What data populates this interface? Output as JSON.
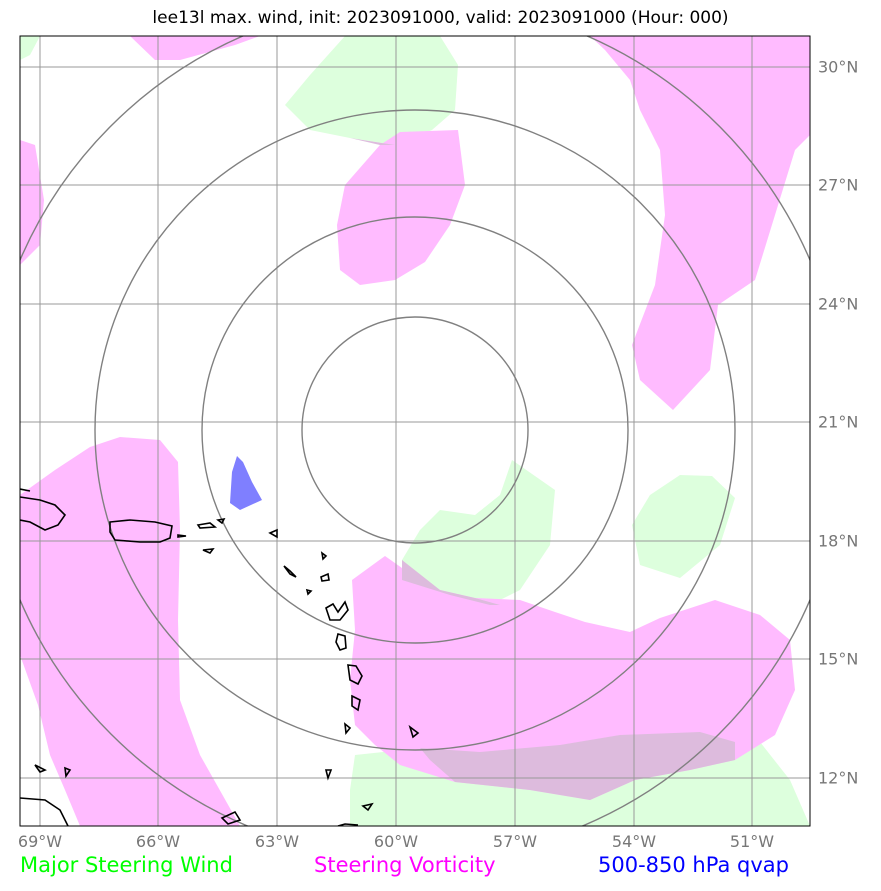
{
  "title": "lee13l max. wind, init: 2023091000, valid: 2023091000 (Hour: 000)",
  "lon_ticks": [
    "69°W",
    "66°W",
    "63°W",
    "60°W",
    "57°W",
    "54°W",
    "51°W"
  ],
  "lat_ticks": [
    "30°N",
    "27°N",
    "24°N",
    "21°N",
    "18°N",
    "15°N",
    "12°N"
  ],
  "legend": {
    "wind": {
      "label": "Major Steering Wind",
      "color": "#00ff00"
    },
    "vorticity": {
      "label": "Steering Vorticity",
      "color": "#ff00ff"
    },
    "qvap": {
      "label": "500-850 hPa qvap",
      "color": "#0000ff"
    }
  },
  "colors": {
    "wind_fill": "#ddffdd",
    "vorticity_fill": "#ffbbff",
    "qvap_fill": "#7f7fff",
    "overlap_fill": "#ddbbdd",
    "grid": "#999999",
    "range_rings": "#808080"
  }
}
